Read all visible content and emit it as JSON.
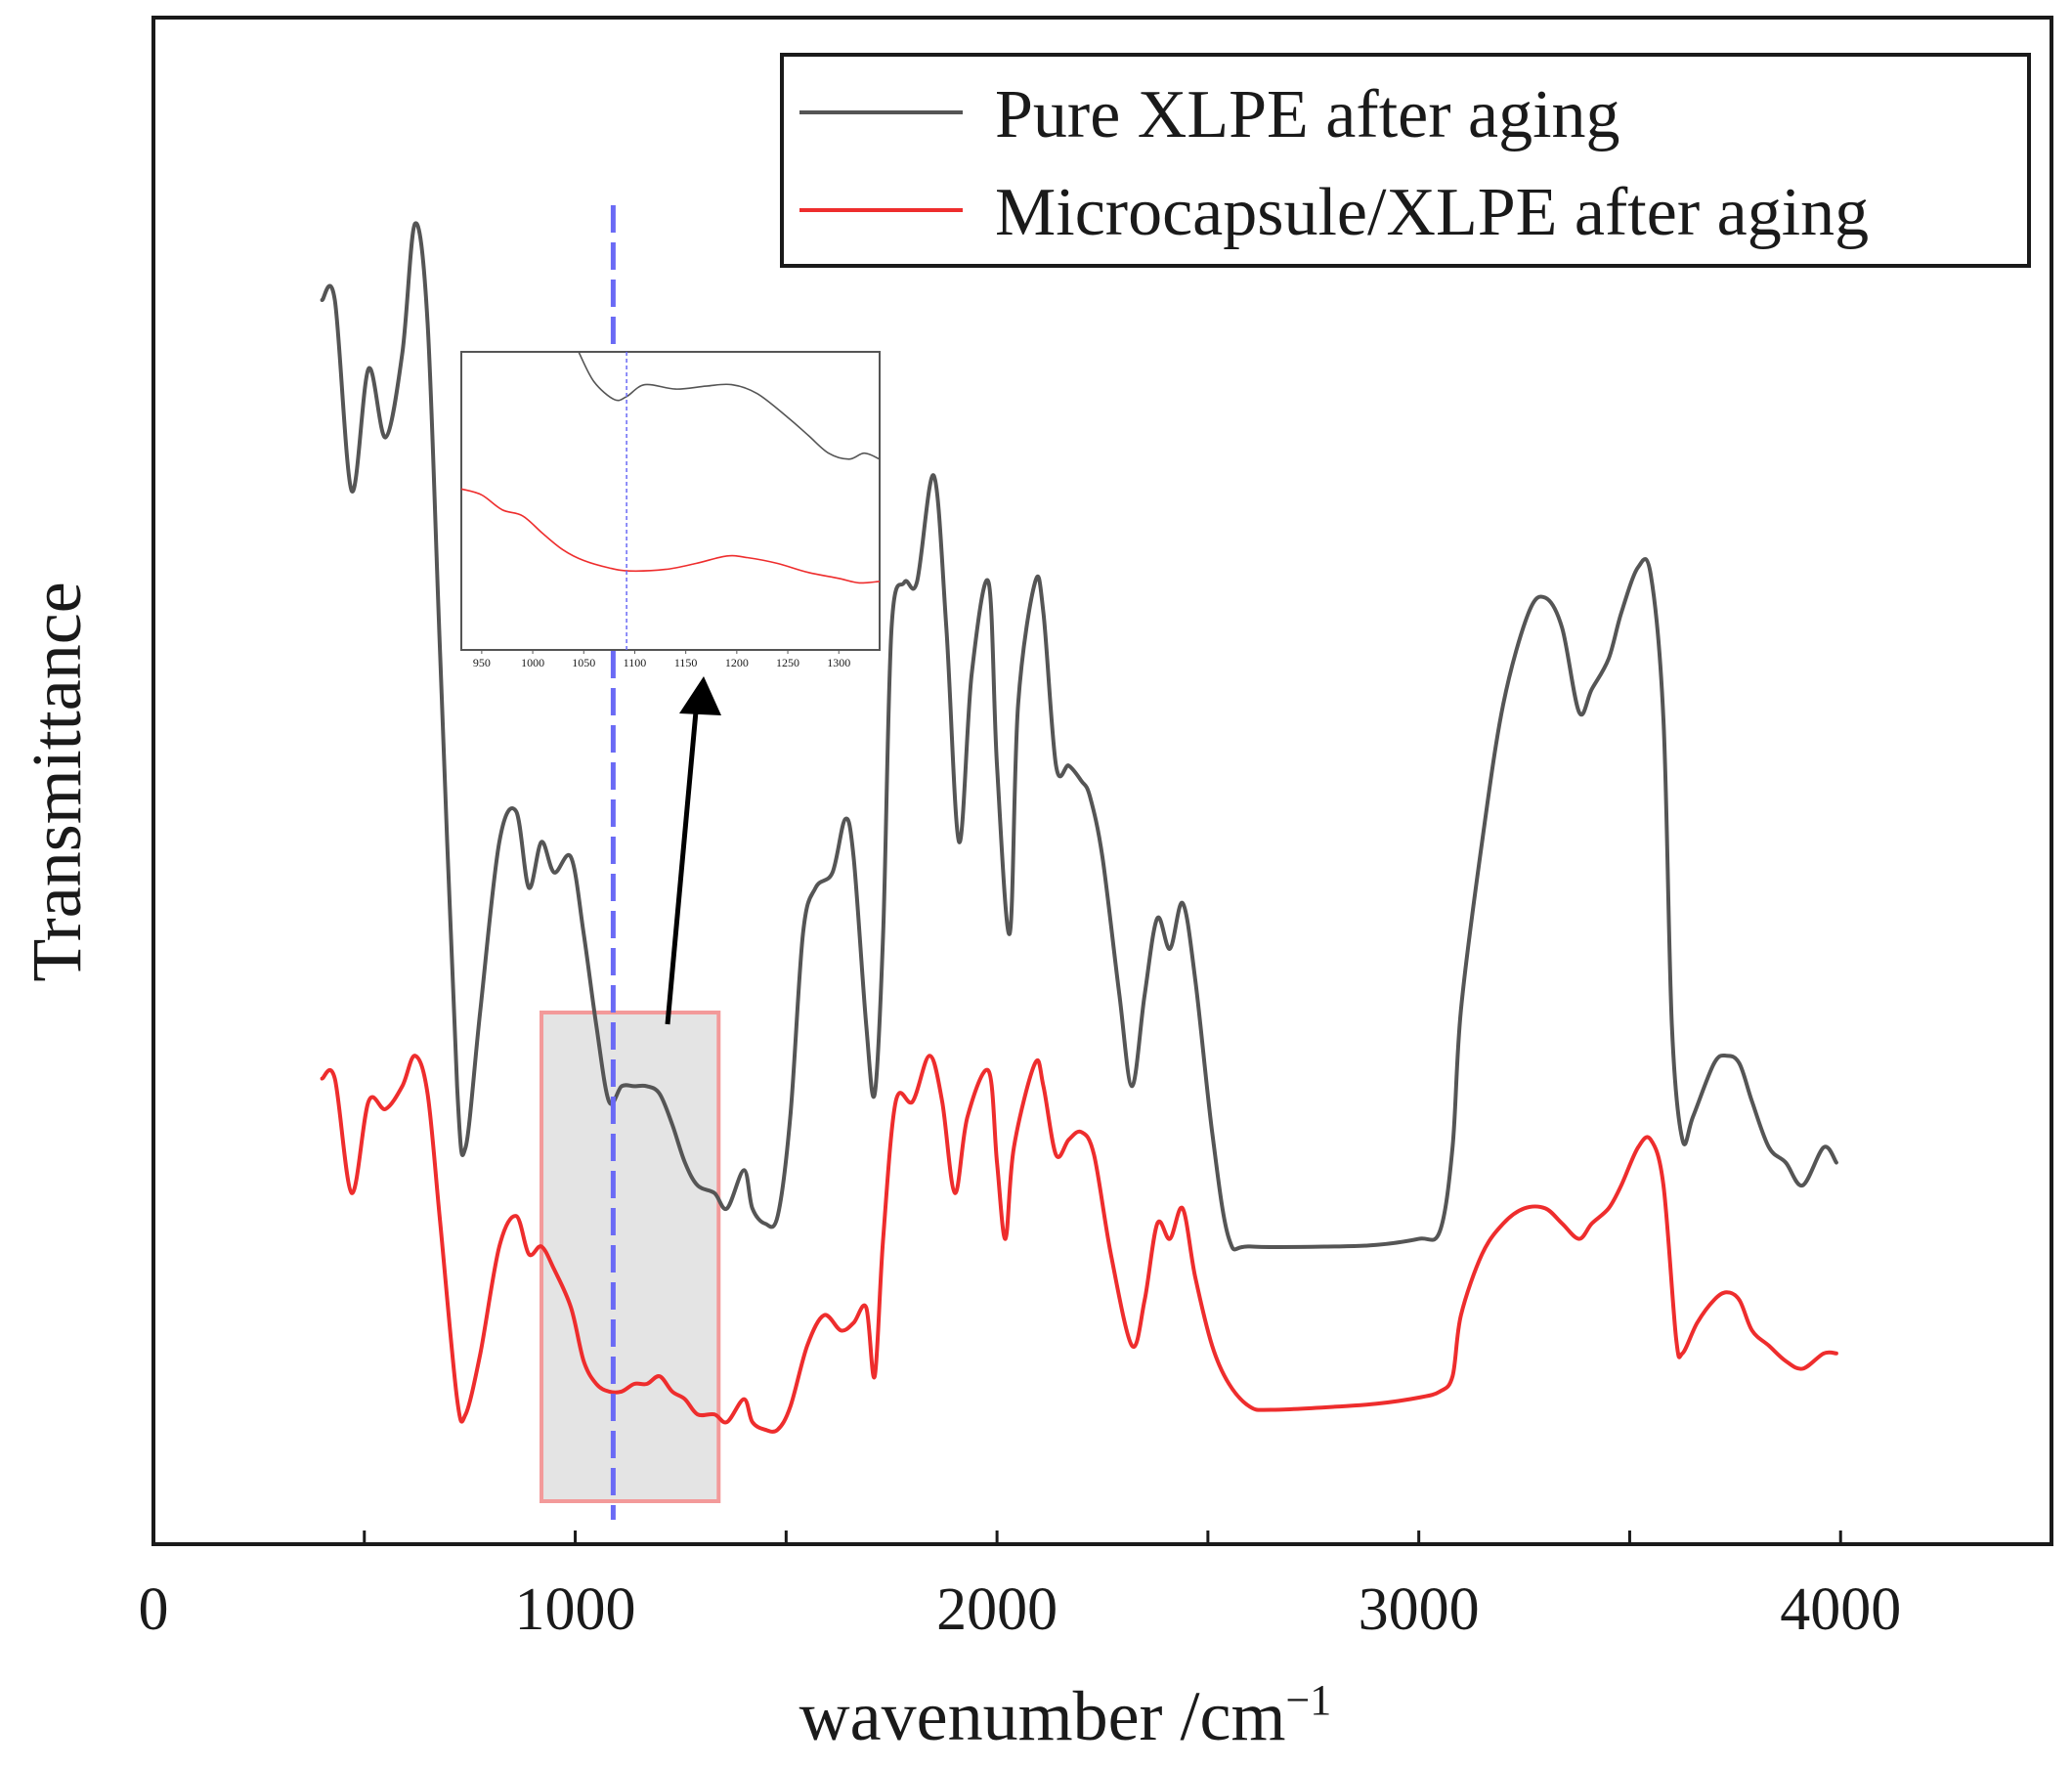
{
  "chart_data": {
    "type": "line",
    "title": "",
    "xlabel": "wavenumber /cm",
    "xlabel_superscript": "−1",
    "ylabel": "Transmittance",
    "xlim": [
      0,
      4500
    ],
    "ylim": [
      0,
      100
    ],
    "x_ticks": [
      "0",
      "1000",
      "2000",
      "3000",
      "4000"
    ],
    "x_tick_values": [
      0,
      1000,
      2000,
      3000,
      4000
    ],
    "y_ticks_labeled": false,
    "grid": false,
    "legend_position": "top-right",
    "colors": {
      "pure": "#555555",
      "micro": "#ee2d2d",
      "marker": "#6a6af5",
      "highlight_fill": "#e4e4e4",
      "highlight_stroke": "#f39a9a"
    },
    "marker_line_x": 1090,
    "highlight_range": [
      920,
      1340
    ],
    "series": [
      {
        "name": "Pure XLPE after aging",
        "color": "#555555",
        "points": [
          [
            400,
            81.5
          ],
          [
            430,
            81.5
          ],
          [
            470,
            69
          ],
          [
            510,
            77
          ],
          [
            550,
            72.5
          ],
          [
            590,
            78
          ],
          [
            620,
            86.5
          ],
          [
            650,
            80
          ],
          [
            680,
            58
          ],
          [
            720,
            30
          ],
          [
            740,
            26
          ],
          [
            775,
            35
          ],
          [
            820,
            46
          ],
          [
            860,
            48
          ],
          [
            890,
            43
          ],
          [
            920,
            46
          ],
          [
            950,
            44
          ],
          [
            990,
            45
          ],
          [
            1020,
            40
          ],
          [
            1050,
            34
          ],
          [
            1080,
            29
          ],
          [
            1110,
            30
          ],
          [
            1140,
            30
          ],
          [
            1170,
            30
          ],
          [
            1200,
            29.5
          ],
          [
            1230,
            27.5
          ],
          [
            1260,
            25
          ],
          [
            1290,
            23.5
          ],
          [
            1330,
            23
          ],
          [
            1360,
            22
          ],
          [
            1400,
            24.5
          ],
          [
            1420,
            22
          ],
          [
            1450,
            21
          ],
          [
            1480,
            21.5
          ],
          [
            1510,
            28
          ],
          [
            1540,
            40
          ],
          [
            1570,
            43
          ],
          [
            1610,
            44
          ],
          [
            1640,
            47.5
          ],
          [
            1660,
            45
          ],
          [
            1690,
            34
          ],
          [
            1710,
            29.5
          ],
          [
            1730,
            40
          ],
          [
            1750,
            60
          ],
          [
            1780,
            63
          ],
          [
            1810,
            63
          ],
          [
            1850,
            70
          ],
          [
            1880,
            60
          ],
          [
            1910,
            46
          ],
          [
            1940,
            57
          ],
          [
            1980,
            63
          ],
          [
            2000,
            51
          ],
          [
            2030,
            40
          ],
          [
            2050,
            55
          ],
          [
            2090,
            63
          ],
          [
            2110,
            61
          ],
          [
            2140,
            51
          ],
          [
            2170,
            51
          ],
          [
            2200,
            50
          ],
          [
            2220,
            49
          ],
          [
            2250,
            45
          ],
          [
            2290,
            36
          ],
          [
            2320,
            30
          ],
          [
            2350,
            36
          ],
          [
            2380,
            41
          ],
          [
            2410,
            39
          ],
          [
            2440,
            42
          ],
          [
            2470,
            37
          ],
          [
            2510,
            27
          ],
          [
            2550,
            20
          ],
          [
            2600,
            19.5
          ],
          [
            2800,
            19.5
          ],
          [
            2900,
            19.6
          ],
          [
            3000,
            20
          ],
          [
            3050,
            20.5
          ],
          [
            3080,
            26
          ],
          [
            3100,
            35
          ],
          [
            3150,
            46
          ],
          [
            3200,
            55
          ],
          [
            3260,
            61
          ],
          [
            3300,
            62
          ],
          [
            3340,
            60
          ],
          [
            3380,
            54.5
          ],
          [
            3410,
            56
          ],
          [
            3450,
            58
          ],
          [
            3480,
            61
          ],
          [
            3520,
            64
          ],
          [
            3550,
            63.5
          ],
          [
            3580,
            54
          ],
          [
            3600,
            34
          ],
          [
            3625,
            26.5
          ],
          [
            3650,
            28
          ],
          [
            3700,
            31.5
          ],
          [
            3730,
            32
          ],
          [
            3760,
            31.5
          ],
          [
            3790,
            29
          ],
          [
            3830,
            26
          ],
          [
            3870,
            25
          ],
          [
            3910,
            23.5
          ],
          [
            3960,
            26
          ],
          [
            3990,
            25
          ]
        ]
      },
      {
        "name": "Microcapsule/XLPE after aging",
        "color": "#ee2d2d",
        "points": [
          [
            400,
            30.5
          ],
          [
            430,
            30.5
          ],
          [
            470,
            23
          ],
          [
            510,
            29
          ],
          [
            550,
            28.5
          ],
          [
            590,
            30
          ],
          [
            620,
            32
          ],
          [
            650,
            29.5
          ],
          [
            680,
            21
          ],
          [
            720,
            9.5
          ],
          [
            740,
            8.5
          ],
          [
            775,
            12.5
          ],
          [
            820,
            19.5
          ],
          [
            860,
            21.5
          ],
          [
            890,
            19
          ],
          [
            920,
            19.5
          ],
          [
            950,
            18
          ],
          [
            990,
            15.5
          ],
          [
            1020,
            12
          ],
          [
            1050,
            10.5
          ],
          [
            1080,
            10
          ],
          [
            1110,
            10
          ],
          [
            1140,
            10.5
          ],
          [
            1170,
            10.5
          ],
          [
            1200,
            11
          ],
          [
            1230,
            10
          ],
          [
            1260,
            9.5
          ],
          [
            1290,
            8.5
          ],
          [
            1330,
            8.5
          ],
          [
            1360,
            8
          ],
          [
            1400,
            9.5
          ],
          [
            1420,
            8
          ],
          [
            1450,
            7.5
          ],
          [
            1480,
            7.5
          ],
          [
            1510,
            9
          ],
          [
            1550,
            13
          ],
          [
            1590,
            15
          ],
          [
            1630,
            14
          ],
          [
            1660,
            14.5
          ],
          [
            1690,
            15.5
          ],
          [
            1710,
            11
          ],
          [
            1730,
            20
          ],
          [
            1760,
            29
          ],
          [
            1800,
            29
          ],
          [
            1840,
            32
          ],
          [
            1870,
            29
          ],
          [
            1900,
            23
          ],
          [
            1930,
            28
          ],
          [
            1980,
            31
          ],
          [
            2000,
            25
          ],
          [
            2020,
            20
          ],
          [
            2040,
            26
          ],
          [
            2090,
            31.5
          ],
          [
            2110,
            30
          ],
          [
            2140,
            25.5
          ],
          [
            2170,
            26.5
          ],
          [
            2200,
            27
          ],
          [
            2230,
            25.5
          ],
          [
            2270,
            19
          ],
          [
            2320,
            13
          ],
          [
            2350,
            16
          ],
          [
            2380,
            21
          ],
          [
            2410,
            20
          ],
          [
            2440,
            22
          ],
          [
            2470,
            17.5
          ],
          [
            2510,
            13
          ],
          [
            2550,
            10.5
          ],
          [
            2600,
            9
          ],
          [
            2650,
            8.8
          ],
          [
            2800,
            9
          ],
          [
            2900,
            9.2
          ],
          [
            3000,
            9.6
          ],
          [
            3050,
            10
          ],
          [
            3080,
            11
          ],
          [
            3100,
            15
          ],
          [
            3150,
            19
          ],
          [
            3200,
            21
          ],
          [
            3250,
            22
          ],
          [
            3300,
            22
          ],
          [
            3340,
            21
          ],
          [
            3380,
            20
          ],
          [
            3410,
            21
          ],
          [
            3450,
            22
          ],
          [
            3480,
            23.5
          ],
          [
            3520,
            26
          ],
          [
            3550,
            26.5
          ],
          [
            3580,
            23.5
          ],
          [
            3610,
            13.5
          ],
          [
            3625,
            12.5
          ],
          [
            3660,
            14.5
          ],
          [
            3700,
            16
          ],
          [
            3730,
            16.5
          ],
          [
            3760,
            16
          ],
          [
            3790,
            14
          ],
          [
            3830,
            13
          ],
          [
            3870,
            12
          ],
          [
            3910,
            11.5
          ],
          [
            3960,
            12.5
          ],
          [
            3990,
            12.5
          ]
        ]
      }
    ],
    "inset": {
      "xlim": [
        930,
        1340
      ],
      "ylim": [
        0,
        100
      ],
      "x_ticks": [
        "950",
        "1000",
        "1050",
        "1100",
        "1150",
        "1200",
        "1250",
        "1300"
      ],
      "x_tick_values": [
        950,
        1000,
        1050,
        1100,
        1150,
        1200,
        1250,
        1300
      ],
      "marker_line_x": 1092,
      "series": [
        {
          "name": "Pure XLPE after aging",
          "color": "#555555",
          "points": [
            [
              1045,
              100
            ],
            [
              1060,
              90
            ],
            [
              1080,
              84
            ],
            [
              1092,
              85
            ],
            [
              1110,
              89
            ],
            [
              1140,
              87.5
            ],
            [
              1170,
              88.5
            ],
            [
              1195,
              89
            ],
            [
              1220,
              86
            ],
            [
              1250,
              78
            ],
            [
              1270,
              72
            ],
            [
              1290,
              66
            ],
            [
              1310,
              64
            ],
            [
              1325,
              66
            ],
            [
              1340,
              64
            ]
          ]
        },
        {
          "name": "Microcapsule/XLPE after aging",
          "color": "#ee2d2d",
          "points": [
            [
              930,
              54
            ],
            [
              950,
              52
            ],
            [
              970,
              47
            ],
            [
              990,
              45
            ],
            [
              1010,
              39
            ],
            [
              1030,
              33.5
            ],
            [
              1050,
              30
            ],
            [
              1075,
              27.5
            ],
            [
              1095,
              26.5
            ],
            [
              1130,
              27
            ],
            [
              1160,
              29
            ],
            [
              1190,
              31.5
            ],
            [
              1210,
              31
            ],
            [
              1240,
              29
            ],
            [
              1270,
              26
            ],
            [
              1300,
              24
            ],
            [
              1320,
              22.5
            ],
            [
              1340,
              23
            ]
          ]
        }
      ]
    }
  }
}
